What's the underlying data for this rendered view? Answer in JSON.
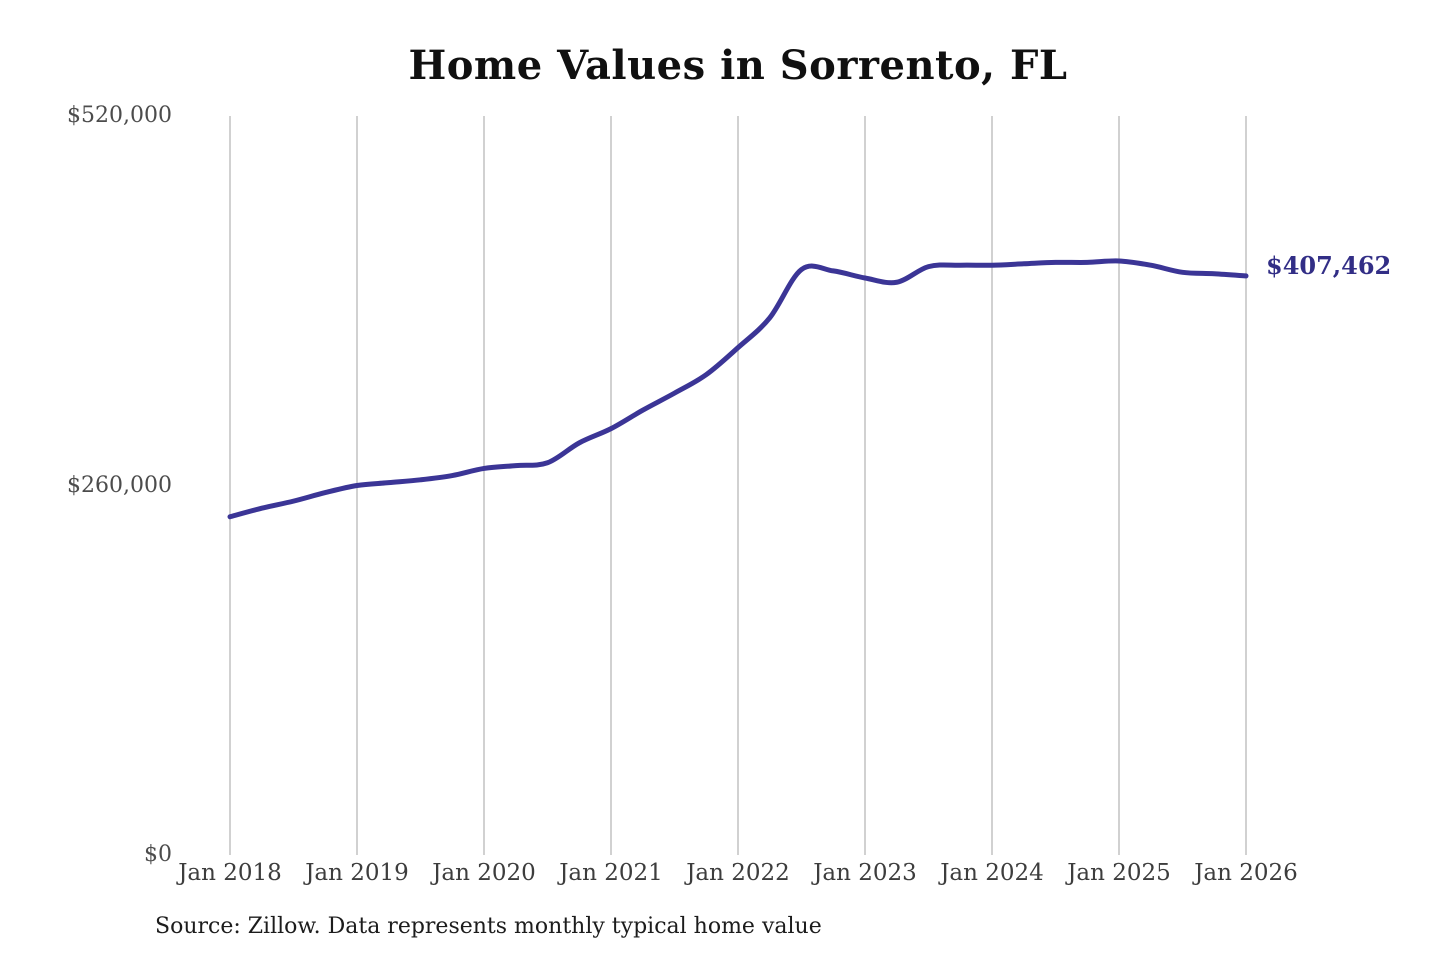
{
  "page": {
    "background": "#ffffff"
  },
  "chart_data": {
    "type": "line",
    "title": "Home Values in Sorrento, FL",
    "source_note": "Source: Zillow. Data represents monthly typical home value",
    "xlabel": "",
    "ylabel": "",
    "ylim": [
      0,
      520000
    ],
    "grid": "vertical-only",
    "legend_position": "none",
    "end_label": "$407,462",
    "end_value": 407462,
    "colors": {
      "line": "#3b3596",
      "end_label": "#322e86",
      "grid": "#c9c9c9",
      "y_axis_text": "#4c4c4c",
      "x_axis_text": "#3d3d3d",
      "title_text": "#101010",
      "source_text": "#1c1c1c"
    },
    "y_ticks": [
      {
        "value": 0,
        "label": "$0"
      },
      {
        "value": 260000,
        "label": "$260,000"
      },
      {
        "value": 520000,
        "label": "$520,000"
      }
    ],
    "x_ticks": [
      {
        "month": 0,
        "label": "Jan 2018"
      },
      {
        "month": 12,
        "label": "Jan 2019"
      },
      {
        "month": 24,
        "label": "Jan 2020"
      },
      {
        "month": 36,
        "label": "Jan 2021"
      },
      {
        "month": 48,
        "label": "Jan 2022"
      },
      {
        "month": 60,
        "label": "Jan 2023"
      },
      {
        "month": 72,
        "label": "Jan 2024"
      },
      {
        "month": 84,
        "label": "Jan 2025"
      },
      {
        "month": 96,
        "label": "Jan 2026"
      }
    ],
    "series": [
      {
        "name": "Monthly typical home value",
        "color": "#3b3596",
        "points": [
          {
            "month": 0,
            "date": "Jan 2018",
            "value": 238000
          },
          {
            "month": 3,
            "date": "Apr 2018",
            "value": 244000
          },
          {
            "month": 6,
            "date": "Jul 2018",
            "value": 249000
          },
          {
            "month": 9,
            "date": "Oct 2018",
            "value": 255000
          },
          {
            "month": 12,
            "date": "Jan 2019",
            "value": 260000
          },
          {
            "month": 15,
            "date": "Apr 2019",
            "value": 262000
          },
          {
            "month": 18,
            "date": "Jul 2019",
            "value": 264000
          },
          {
            "month": 21,
            "date": "Oct 2019",
            "value": 267000
          },
          {
            "month": 24,
            "date": "Jan 2020",
            "value": 272000
          },
          {
            "month": 27,
            "date": "Apr 2020",
            "value": 274000
          },
          {
            "month": 30,
            "date": "Jul 2020",
            "value": 276000
          },
          {
            "month": 33,
            "date": "Oct 2020",
            "value": 290000
          },
          {
            "month": 36,
            "date": "Jan 2021",
            "value": 300000
          },
          {
            "month": 39,
            "date": "Apr 2021",
            "value": 313000
          },
          {
            "month": 42,
            "date": "Jul 2021",
            "value": 325000
          },
          {
            "month": 45,
            "date": "Oct 2021",
            "value": 338000
          },
          {
            "month": 48,
            "date": "Jan 2022",
            "value": 357000
          },
          {
            "month": 51,
            "date": "Apr 2022",
            "value": 378000
          },
          {
            "month": 54,
            "date": "Jul 2022",
            "value": 412000
          },
          {
            "month": 57,
            "date": "Oct 2022",
            "value": 411000
          },
          {
            "month": 60,
            "date": "Jan 2023",
            "value": 406000
          },
          {
            "month": 63,
            "date": "Apr 2023",
            "value": 403000
          },
          {
            "month": 66,
            "date": "Jul 2023",
            "value": 414000
          },
          {
            "month": 69,
            "date": "Oct 2023",
            "value": 415000
          },
          {
            "month": 72,
            "date": "Jan 2024",
            "value": 415000
          },
          {
            "month": 75,
            "date": "Apr 2024",
            "value": 416000
          },
          {
            "month": 78,
            "date": "Jul 2024",
            "value": 417000
          },
          {
            "month": 81,
            "date": "Oct 2024",
            "value": 417000
          },
          {
            "month": 84,
            "date": "Jan 2025",
            "value": 418000
          },
          {
            "month": 87,
            "date": "Apr 2025",
            "value": 415000
          },
          {
            "month": 90,
            "date": "Jul 2025",
            "value": 410000
          },
          {
            "month": 93,
            "date": "Oct 2025",
            "value": 409000
          },
          {
            "month": 96,
            "date": "Jan 2026",
            "value": 407462
          }
        ]
      }
    ]
  }
}
